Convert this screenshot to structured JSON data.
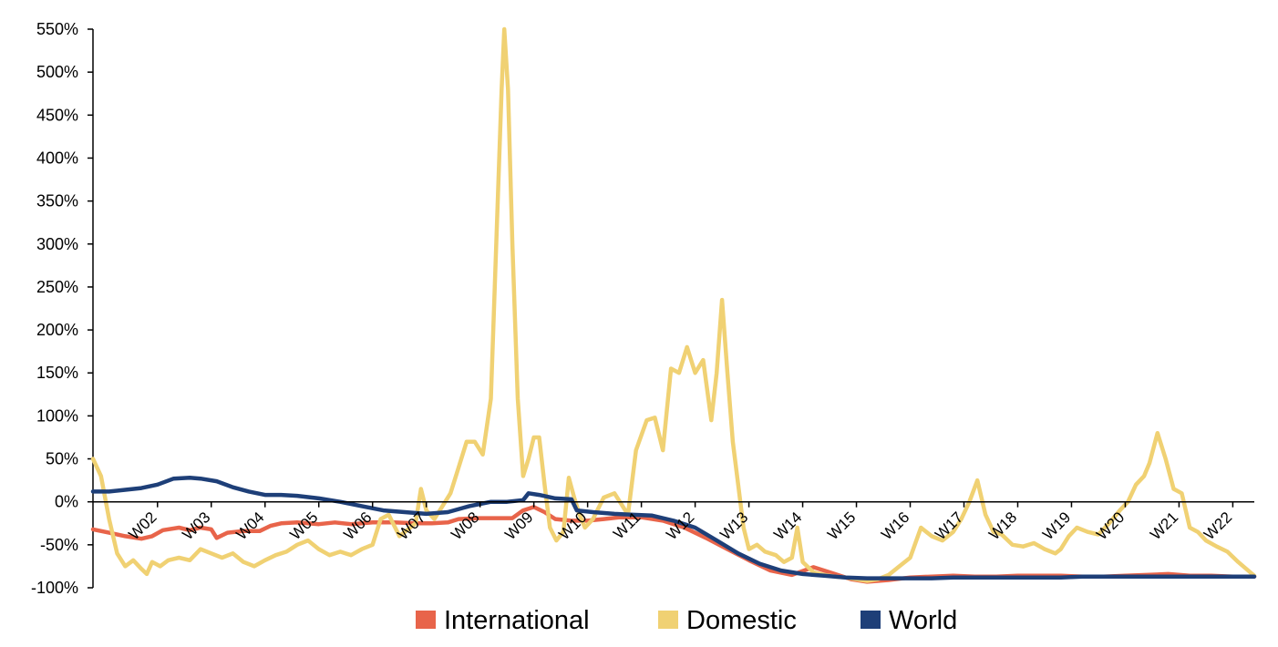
{
  "chart_data": {
    "type": "line",
    "title": "",
    "xlabel": "",
    "ylabel": "",
    "xlim": [
      0,
      21.6
    ],
    "ylim": [
      -100,
      550
    ],
    "y_ticks": [
      -100,
      -50,
      0,
      50,
      100,
      150,
      200,
      250,
      300,
      350,
      400,
      450,
      500,
      550
    ],
    "y_tick_labels": [
      "-100%",
      "-50%",
      "0%",
      "50%",
      "100%",
      "150%",
      "200%",
      "250%",
      "300%",
      "350%",
      "400%",
      "450%",
      "500%",
      "550%"
    ],
    "x_ticks": [
      1.2,
      2.2,
      3.2,
      4.2,
      5.2,
      6.2,
      7.2,
      8.2,
      9.2,
      10.2,
      11.2,
      12.2,
      13.2,
      14.2,
      15.2,
      16.2,
      17.2,
      18.2,
      19.2,
      20.2,
      21.2
    ],
    "x_tick_labels": [
      "W02",
      "W03",
      "W04",
      "W05",
      "W06",
      "W07",
      "W08",
      "W09",
      "W10",
      "W11",
      "W12",
      "W13",
      "W14",
      "W15",
      "W16",
      "W17",
      "W18",
      "W19",
      "W20",
      "W21",
      "W22"
    ],
    "legend_position": "bottom-center",
    "grid": false,
    "series": [
      {
        "name": "International",
        "color": "#e8644a",
        "points": [
          [
            0,
            -32
          ],
          [
            0.3,
            -36
          ],
          [
            0.6,
            -40
          ],
          [
            0.9,
            -43
          ],
          [
            1.1,
            -40
          ],
          [
            1.3,
            -33
          ],
          [
            1.6,
            -30
          ],
          [
            1.8,
            -33
          ],
          [
            2.0,
            -30
          ],
          [
            2.2,
            -32
          ],
          [
            2.3,
            -42
          ],
          [
            2.5,
            -36
          ],
          [
            2.8,
            -34
          ],
          [
            3.1,
            -34
          ],
          [
            3.3,
            -28
          ],
          [
            3.5,
            -25
          ],
          [
            3.8,
            -24
          ],
          [
            4.2,
            -26
          ],
          [
            4.5,
            -24
          ],
          [
            4.8,
            -26
          ],
          [
            5.2,
            -24
          ],
          [
            5.6,
            -24
          ],
          [
            6.0,
            -25
          ],
          [
            6.3,
            -25
          ],
          [
            6.6,
            -24
          ],
          [
            6.8,
            -20
          ],
          [
            7.2,
            -19
          ],
          [
            7.5,
            -19
          ],
          [
            7.8,
            -19
          ],
          [
            8.0,
            -10
          ],
          [
            8.2,
            -6
          ],
          [
            8.4,
            -12
          ],
          [
            8.6,
            -20
          ],
          [
            8.9,
            -22
          ],
          [
            9.2,
            -22
          ],
          [
            9.5,
            -20
          ],
          [
            9.8,
            -18
          ],
          [
            10.2,
            -18
          ],
          [
            10.6,
            -22
          ],
          [
            11.0,
            -30
          ],
          [
            11.4,
            -42
          ],
          [
            11.8,
            -55
          ],
          [
            12.2,
            -68
          ],
          [
            12.6,
            -80
          ],
          [
            13.0,
            -85
          ],
          [
            13.4,
            -76
          ],
          [
            13.8,
            -84
          ],
          [
            14.1,
            -90
          ],
          [
            14.4,
            -93
          ],
          [
            14.8,
            -91
          ],
          [
            15.2,
            -88
          ],
          [
            15.6,
            -87
          ],
          [
            16.0,
            -86
          ],
          [
            16.4,
            -87
          ],
          [
            16.8,
            -87
          ],
          [
            17.2,
            -86
          ],
          [
            17.6,
            -86
          ],
          [
            18.0,
            -86
          ],
          [
            18.4,
            -87
          ],
          [
            18.8,
            -87
          ],
          [
            19.2,
            -86
          ],
          [
            19.6,
            -85
          ],
          [
            20.0,
            -84
          ],
          [
            20.4,
            -86
          ],
          [
            20.8,
            -86
          ],
          [
            21.2,
            -87
          ],
          [
            21.6,
            -87
          ]
        ]
      },
      {
        "name": "Domestic",
        "color": "#f0d173",
        "points": [
          [
            0,
            50
          ],
          [
            0.15,
            30
          ],
          [
            0.3,
            -20
          ],
          [
            0.45,
            -60
          ],
          [
            0.6,
            -75
          ],
          [
            0.75,
            -68
          ],
          [
            0.9,
            -78
          ],
          [
            1.0,
            -84
          ],
          [
            1.1,
            -70
          ],
          [
            1.25,
            -75
          ],
          [
            1.4,
            -68
          ],
          [
            1.6,
            -65
          ],
          [
            1.8,
            -68
          ],
          [
            2.0,
            -55
          ],
          [
            2.2,
            -60
          ],
          [
            2.4,
            -65
          ],
          [
            2.6,
            -60
          ],
          [
            2.8,
            -70
          ],
          [
            3.0,
            -75
          ],
          [
            3.2,
            -68
          ],
          [
            3.4,
            -62
          ],
          [
            3.6,
            -58
          ],
          [
            3.8,
            -50
          ],
          [
            4.0,
            -45
          ],
          [
            4.2,
            -55
          ],
          [
            4.4,
            -62
          ],
          [
            4.6,
            -58
          ],
          [
            4.8,
            -62
          ],
          [
            5.0,
            -55
          ],
          [
            5.2,
            -50
          ],
          [
            5.35,
            -20
          ],
          [
            5.5,
            -15
          ],
          [
            5.7,
            -40
          ],
          [
            5.9,
            -30
          ],
          [
            6.0,
            -25
          ],
          [
            6.1,
            15
          ],
          [
            6.2,
            -10
          ],
          [
            6.35,
            -20
          ],
          [
            6.5,
            -5
          ],
          [
            6.65,
            10
          ],
          [
            6.8,
            40
          ],
          [
            6.95,
            70
          ],
          [
            7.1,
            70
          ],
          [
            7.25,
            55
          ],
          [
            7.4,
            120
          ],
          [
            7.5,
            300
          ],
          [
            7.6,
            480
          ],
          [
            7.65,
            550
          ],
          [
            7.72,
            480
          ],
          [
            7.8,
            300
          ],
          [
            7.9,
            120
          ],
          [
            8.0,
            30
          ],
          [
            8.1,
            50
          ],
          [
            8.2,
            75
          ],
          [
            8.3,
            75
          ],
          [
            8.4,
            20
          ],
          [
            8.5,
            -30
          ],
          [
            8.62,
            -45
          ],
          [
            8.75,
            -35
          ],
          [
            8.85,
            28
          ],
          [
            8.95,
            5
          ],
          [
            9.05,
            -15
          ],
          [
            9.15,
            -30
          ],
          [
            9.3,
            -20
          ],
          [
            9.5,
            5
          ],
          [
            9.7,
            10
          ],
          [
            9.85,
            -5
          ],
          [
            9.95,
            -15
          ],
          [
            10.1,
            60
          ],
          [
            10.3,
            95
          ],
          [
            10.45,
            98
          ],
          [
            10.6,
            60
          ],
          [
            10.75,
            155
          ],
          [
            10.9,
            150
          ],
          [
            11.05,
            180
          ],
          [
            11.2,
            150
          ],
          [
            11.35,
            165
          ],
          [
            11.5,
            95
          ],
          [
            11.6,
            150
          ],
          [
            11.7,
            235
          ],
          [
            11.8,
            150
          ],
          [
            11.9,
            70
          ],
          [
            12.0,
            20
          ],
          [
            12.1,
            -30
          ],
          [
            12.2,
            -55
          ],
          [
            12.35,
            -50
          ],
          [
            12.5,
            -58
          ],
          [
            12.7,
            -62
          ],
          [
            12.85,
            -70
          ],
          [
            13.0,
            -65
          ],
          [
            13.1,
            -30
          ],
          [
            13.2,
            -70
          ],
          [
            13.4,
            -82
          ],
          [
            13.6,
            -85
          ],
          [
            13.8,
            -87
          ],
          [
            14.0,
            -88
          ],
          [
            14.2,
            -90
          ],
          [
            14.4,
            -92
          ],
          [
            14.6,
            -90
          ],
          [
            14.8,
            -85
          ],
          [
            15.0,
            -75
          ],
          [
            15.2,
            -65
          ],
          [
            15.4,
            -30
          ],
          [
            15.6,
            -40
          ],
          [
            15.8,
            -45
          ],
          [
            16.0,
            -35
          ],
          [
            16.15,
            -20
          ],
          [
            16.3,
            0
          ],
          [
            16.45,
            25
          ],
          [
            16.6,
            -15
          ],
          [
            16.75,
            -35
          ],
          [
            16.9,
            -38
          ],
          [
            17.1,
            -50
          ],
          [
            17.3,
            -52
          ],
          [
            17.5,
            -48
          ],
          [
            17.7,
            -55
          ],
          [
            17.9,
            -60
          ],
          [
            18.0,
            -55
          ],
          [
            18.15,
            -40
          ],
          [
            18.3,
            -30
          ],
          [
            18.5,
            -35
          ],
          [
            18.7,
            -38
          ],
          [
            18.9,
            -25
          ],
          [
            19.1,
            -10
          ],
          [
            19.25,
            0
          ],
          [
            19.4,
            20
          ],
          [
            19.55,
            30
          ],
          [
            19.65,
            45
          ],
          [
            19.8,
            80
          ],
          [
            19.95,
            50
          ],
          [
            20.1,
            15
          ],
          [
            20.25,
            10
          ],
          [
            20.4,
            -30
          ],
          [
            20.55,
            -35
          ],
          [
            20.7,
            -45
          ],
          [
            20.9,
            -52
          ],
          [
            21.1,
            -58
          ],
          [
            21.3,
            -70
          ],
          [
            21.45,
            -78
          ],
          [
            21.6,
            -86
          ]
        ]
      },
      {
        "name": "World",
        "color": "#1e3f78",
        "points": [
          [
            0,
            12
          ],
          [
            0.3,
            12
          ],
          [
            0.6,
            14
          ],
          [
            0.9,
            16
          ],
          [
            1.2,
            20
          ],
          [
            1.5,
            27
          ],
          [
            1.8,
            28
          ],
          [
            2.0,
            27
          ],
          [
            2.3,
            24
          ],
          [
            2.6,
            17
          ],
          [
            2.9,
            12
          ],
          [
            3.2,
            8
          ],
          [
            3.5,
            8
          ],
          [
            3.8,
            7
          ],
          [
            4.2,
            4
          ],
          [
            4.6,
            0
          ],
          [
            5.0,
            -5
          ],
          [
            5.4,
            -10
          ],
          [
            5.8,
            -12
          ],
          [
            6.2,
            -14
          ],
          [
            6.6,
            -12
          ],
          [
            7.0,
            -5
          ],
          [
            7.4,
            0
          ],
          [
            7.7,
            0
          ],
          [
            8.0,
            2
          ],
          [
            8.1,
            10
          ],
          [
            8.3,
            8
          ],
          [
            8.6,
            4
          ],
          [
            8.9,
            3
          ],
          [
            9.0,
            -10
          ],
          [
            9.3,
            -12
          ],
          [
            9.7,
            -14
          ],
          [
            10.0,
            -15
          ],
          [
            10.4,
            -16
          ],
          [
            10.8,
            -22
          ],
          [
            11.2,
            -30
          ],
          [
            11.6,
            -45
          ],
          [
            12.0,
            -60
          ],
          [
            12.4,
            -72
          ],
          [
            12.8,
            -80
          ],
          [
            13.2,
            -84
          ],
          [
            13.6,
            -86
          ],
          [
            14.0,
            -88
          ],
          [
            14.4,
            -89
          ],
          [
            14.8,
            -89
          ],
          [
            15.2,
            -89
          ],
          [
            15.6,
            -89
          ],
          [
            16.0,
            -88
          ],
          [
            16.4,
            -88
          ],
          [
            16.8,
            -88
          ],
          [
            17.2,
            -88
          ],
          [
            17.6,
            -88
          ],
          [
            18.0,
            -88
          ],
          [
            18.4,
            -87
          ],
          [
            18.8,
            -87
          ],
          [
            19.2,
            -87
          ],
          [
            19.6,
            -87
          ],
          [
            20.0,
            -87
          ],
          [
            20.4,
            -87
          ],
          [
            20.8,
            -87
          ],
          [
            21.2,
            -87
          ],
          [
            21.6,
            -87
          ]
        ]
      }
    ]
  }
}
